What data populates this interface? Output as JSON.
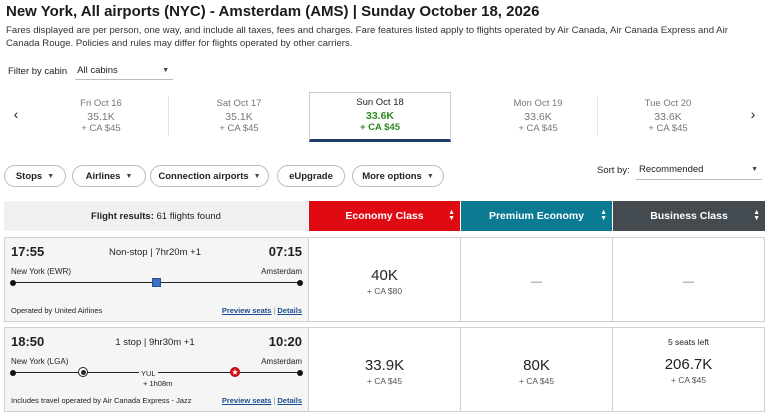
{
  "title": "New York, All airports (NYC) - Amsterdam (AMS)  |  Sunday October 18, 2026",
  "disclaimer": "Fares displayed are per person, one way, and include all taxes, fees and charges. Fare features listed apply to flights operated by Air Canada, Air Canada Express and Air Canada Rouge. Policies and rules may differ for flights operated by other carriers.",
  "filter": {
    "label": "Filter by cabin",
    "value": "All cabins"
  },
  "dates": [
    {
      "day": "Fri Oct 16",
      "price": "35.1K",
      "tax": "+ CA $45",
      "selected": false
    },
    {
      "day": "Sat Oct 17",
      "price": "35.1K",
      "tax": "+ CA $45",
      "selected": false
    },
    {
      "day": "Sun Oct 18",
      "price": "33.6K",
      "tax": "+ CA $45",
      "selected": true
    },
    {
      "day": "Mon Oct 19",
      "price": "33.6K",
      "tax": "+ CA $45",
      "selected": false
    },
    {
      "day": "Tue Oct 20",
      "price": "33.6K",
      "tax": "+ CA $45",
      "selected": false
    }
  ],
  "nav": {
    "prev": "‹",
    "next": "›"
  },
  "filters": {
    "stops": "Stops",
    "airlines": "Airlines",
    "connection": "Connection airports",
    "eupgrade": "eUpgrade",
    "more": "More options"
  },
  "sort": {
    "label": "Sort by:",
    "value": "Recommended"
  },
  "results": {
    "label": "Flight results:",
    "count": "61 flights found"
  },
  "cabins": {
    "economy": "Economy Class",
    "premium": "Premium Economy",
    "business": "Business Class"
  },
  "flights": [
    {
      "dep_time": "17:55",
      "arr_time": "07:15",
      "duration": "Non-stop | 7hr20m +1",
      "origin": "New York (EWR)",
      "destination": "Amsterdam",
      "operated": "Operated by United Airlines",
      "economy": {
        "points": "40K",
        "tax": "+ CA $80"
      },
      "premium": "—",
      "business": "—"
    },
    {
      "dep_time": "18:50",
      "arr_time": "10:20",
      "duration": "1 stop | 9hr30m +1",
      "origin": "New York (LGA)",
      "destination": "Amsterdam",
      "stop": "YUL",
      "layover": "+ 1h08m",
      "operated": "Includes travel operated by Air Canada Express - Jazz",
      "economy": {
        "points": "33.9K",
        "tax": "+ CA $45"
      },
      "premium": {
        "points": "80K",
        "tax": "+ CA $45"
      },
      "business": {
        "seats": "5 seats left",
        "points": "206.7K",
        "tax": "+ CA $45"
      }
    }
  ],
  "links": {
    "preview": "Preview seats",
    "details": "Details",
    "sep": "|"
  },
  "colors": {
    "economy": "#e00a13",
    "premium": "#0b7a93",
    "business": "#434b50",
    "selected_price": "#2d8a22"
  },
  "icons": {
    "caret": "caret-down-icon",
    "sort": "sort-icon",
    "united": "united-logo-icon",
    "aircanada": "air-canada-logo-icon"
  }
}
